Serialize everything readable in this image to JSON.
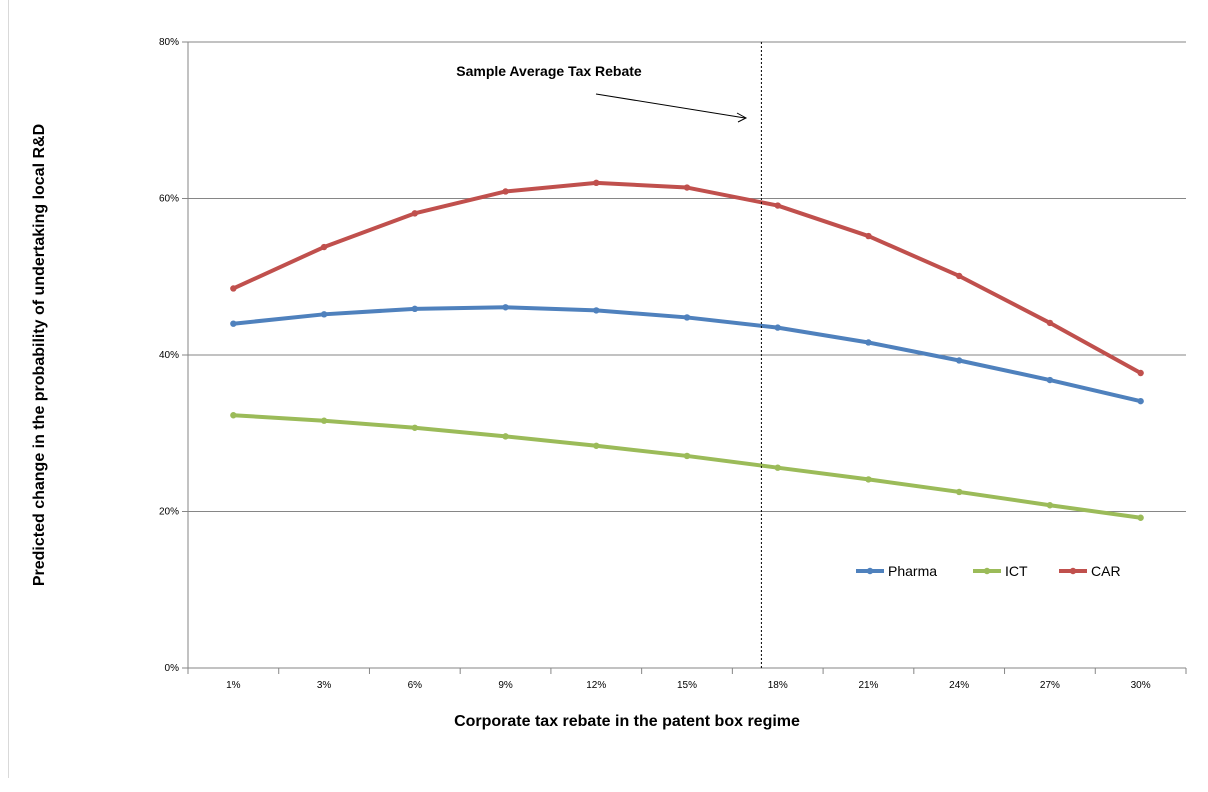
{
  "chart_data": {
    "type": "line",
    "title": "",
    "xlabel": "Corporate tax rebate in the patent box regime",
    "ylabel": "Predicted change in the probability of undertaking local R&D",
    "categories": [
      "1%",
      "3%",
      "6%",
      "9%",
      "12%",
      "15%",
      "18%",
      "21%",
      "24%",
      "27%",
      "30%"
    ],
    "ylim": [
      0,
      0.8
    ],
    "yticks": [
      {
        "value": 0,
        "label": "0%"
      },
      {
        "value": 0.2,
        "label": "20%"
      },
      {
        "value": 0.4,
        "label": "40%"
      },
      {
        "value": 0.6,
        "label": "60%"
      },
      {
        "value": 0.8,
        "label": "80%"
      }
    ],
    "grid": "horizontal",
    "legend": "lower-right",
    "series": [
      {
        "name": "Pharma",
        "color": "#4f81bd",
        "values": [
          0.44,
          0.452,
          0.459,
          0.461,
          0.457,
          0.448,
          0.435,
          0.416,
          0.393,
          0.368,
          0.341
        ]
      },
      {
        "name": "ICT",
        "color": "#9bbb59",
        "values": [
          0.323,
          0.316,
          0.307,
          0.296,
          0.284,
          0.271,
          0.256,
          0.241,
          0.225,
          0.208,
          0.192
        ]
      },
      {
        "name": "CAR",
        "color": "#c0504d",
        "values": [
          0.485,
          0.538,
          0.581,
          0.609,
          0.62,
          0.614,
          0.591,
          0.552,
          0.501,
          0.441,
          0.377
        ]
      }
    ],
    "annotation": {
      "text": "Sample Average Tax Rebate",
      "x_position": "17%",
      "line_style": "dashed vertical"
    }
  }
}
